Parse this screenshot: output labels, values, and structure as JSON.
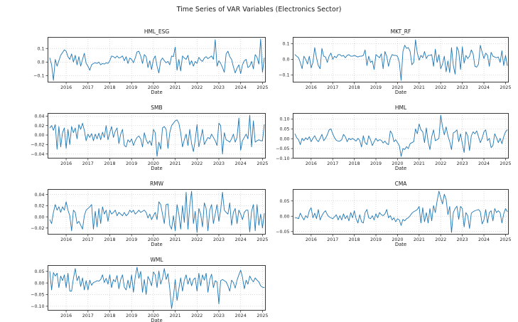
{
  "figure": {
    "background": "#ffffff",
    "text_color": "#262626"
  },
  "chart_data": {
    "type": "line",
    "title": "Time Series of VAR Variables (Electronics Sector)",
    "xlabel": "Date",
    "frequency": "monthly",
    "x_start": 2015.25,
    "x_step": 0.0833333,
    "xlim": [
      2015.15,
      2025.15
    ],
    "xticks": [
      2016,
      2017,
      2018,
      2019,
      2020,
      2021,
      2022,
      2023,
      2024,
      2025
    ],
    "grid": "dotted",
    "line_color": "#1f77b4",
    "subplots": [
      {
        "title": "HML_ESG",
        "ylim": [
          -0.15,
          0.185
        ],
        "ytick_values": [
          0.1,
          0.0,
          -0.1
        ],
        "ytick_labels": [
          "0.1",
          "0.0",
          "−0.1"
        ],
        "values": [
          0.03,
          -0.02,
          -0.135,
          0.02,
          -0.03,
          0.01,
          0.05,
          0.07,
          0.09,
          0.08,
          0.04,
          0.02,
          0.06,
          0,
          0.05,
          -0.02,
          0.04,
          -0.03,
          0.02,
          0.065,
          -0.01,
          -0.03,
          -0.06,
          -0.02,
          -0.01,
          -0.005,
          -0.01,
          0,
          -0.02,
          -0.01,
          -0.015,
          -0.005,
          -0.01,
          0.01,
          0.045,
          0.04,
          0.03,
          0.045,
          0.03,
          0.035,
          0.045,
          0.01,
          0.04,
          -0.01,
          0.03,
          0.02,
          -0.005,
          0.03,
          0.075,
          0.08,
          0.045,
          -0.01,
          0.055,
          0.04,
          -0.04,
          0.01,
          -0.055,
          0.02,
          0.045,
          -0.03,
          -0.08,
          0.01,
          0.03,
          0.01,
          -0.005,
          0.005,
          -0.02,
          0.045,
          0.04,
          0.11,
          -0.06,
          0.02,
          -0.065,
          0.045,
          0.03,
          0.02,
          0.05,
          -0.02,
          0.01,
          -0.03,
          0.005,
          -0.01,
          0.035,
          0.015,
          0.005,
          0.03,
          0.04,
          0.025,
          0.035,
          0.045,
          0.02,
          0.165,
          -0.03,
          0.01,
          -0.01,
          -0.04,
          -0.075,
          0.06,
          0.08,
          0.04,
          0.02,
          -0.035,
          -0.08,
          -0.045,
          -0.02,
          -0.085,
          -0.02,
          0.01,
          0.02,
          -0.04,
          -0.03,
          0.005,
          -0.05,
          0.055,
          0.035,
          -0.015,
          0.17,
          -0.075,
          0.03
        ]
      },
      {
        "title": "MKT_RF",
        "ylim": [
          -0.148,
          0.143
        ],
        "ytick_values": [
          0.1,
          0.0,
          -0.1
        ],
        "ytick_labels": [
          "0.1",
          "0.0",
          "−0.1"
        ],
        "values": [
          0.03,
          0.02,
          0.01,
          -0.02,
          -0.06,
          0.02,
          0,
          -0.03,
          0.02,
          -0.055,
          -0.02,
          0.075,
          0.01,
          -0.04,
          -0.06,
          0.07,
          0.02,
          0.015,
          -0.02,
          0.02,
          0.04,
          0,
          0.02,
          0.01,
          0.03,
          0.03,
          0.02,
          0.025,
          0.01,
          0.025,
          0.03,
          0.02,
          0.02,
          0.025,
          0.02,
          0.015,
          0.02,
          0.02,
          0.025,
          0.06,
          -0.04,
          0.02,
          -0.02,
          -0.01,
          -0.065,
          0.03,
          0.02,
          0.01,
          0.035,
          -0.06,
          0.05,
          0.02,
          -0.045,
          0.005,
          0.03,
          0.025,
          0.025,
          0.02,
          -0.02,
          -0.135,
          0.05,
          0.09,
          0.07,
          0.075,
          0.05,
          -0.035,
          -0.02,
          0.125,
          0.04,
          -0.005,
          0.025,
          0.01,
          0.05,
          0.005,
          0.025,
          0.025,
          0.03,
          -0.045,
          0.065,
          -0.02,
          0.03,
          -0.06,
          -0.03,
          0.02,
          -0.08,
          -0.01,
          -0.085,
          0.075,
          -0.04,
          -0.095,
          0.08,
          0.05,
          -0.065,
          0.08,
          -0.025,
          0.025,
          0.005,
          0.02,
          0.06,
          0.035,
          -0.045,
          -0.05,
          -0.03,
          0.09,
          0.045,
          0.005,
          0.04,
          0.025,
          -0.045,
          0.045,
          0.02,
          0.015,
          0.01,
          0.015,
          -0.02,
          0.055,
          -0.04,
          0.025,
          -0.04
        ]
      },
      {
        "title": "SMB",
        "ylim": [
          -0.0495,
          0.0465
        ],
        "ytick_values": [
          0.04,
          0.02,
          0.0,
          -0.02,
          -0.04
        ],
        "ytick_labels": [
          "0.04",
          "0.02",
          "0.00",
          "−0.02",
          "−0.04"
        ],
        "values": [
          0.015,
          0.02,
          0.01,
          0.022,
          -0.03,
          0.018,
          -0.025,
          0.005,
          0.015,
          -0.028,
          0.012,
          -0.02,
          0.018,
          0.005,
          0.015,
          -0.008,
          0.022,
          0.012,
          0.025,
          0.01,
          -0.012,
          0.002,
          -0.005,
          0.003,
          -0.012,
          0.002,
          -0.008,
          0.004,
          -0.01,
          0.006,
          -0.005,
          0.02,
          -0.01,
          0.005,
          0.018,
          -0.005,
          0.008,
          0.015,
          -0.018,
          0.002,
          0.012,
          -0.022,
          -0.025,
          -0.01,
          -0.015,
          -0.008,
          -0.022,
          -0.012,
          -0.005,
          -0.002,
          -0.008,
          -0.025,
          0.005,
          -0.01,
          -0.018,
          -0.012,
          -0.022,
          0.012,
          0.005,
          -0.045,
          -0.015,
          -0.03,
          0.015,
          0.018,
          0.012,
          -0.028,
          0.005,
          0.02,
          0.025,
          0.03,
          0.032,
          0.025,
          0.005,
          -0.025,
          -0.01,
          0.002,
          -0.022,
          0.012,
          -0.018,
          -0.035,
          -0.01,
          0.022,
          -0.025,
          -0.008,
          0.012,
          -0.02,
          -0.012,
          -0.005,
          -0.008,
          0.002,
          -0.005,
          -0.012,
          -0.022,
          0.025,
          0.02,
          -0.04,
          0.005,
          -0.01,
          -0.012,
          -0.015,
          -0.008,
          0.002,
          -0.015,
          -0.005,
          0.036,
          -0.032,
          -0.012,
          -0.005,
          0.002,
          -0.008,
          0.042,
          -0.025,
          0.03,
          -0.015,
          -0.012,
          -0.01,
          -0.012,
          -0.012,
          0.022
        ]
      },
      {
        "title": "HML",
        "ylim": [
          -0.1005,
          0.1305
        ],
        "ytick_values": [
          0.1,
          0.05,
          0.0,
          -0.05,
          -0.1
        ],
        "ytick_labels": [
          "0.10",
          "0.05",
          "0.00",
          "−0.05",
          "−0.10"
        ],
        "values": [
          0.025,
          0.005,
          -0.005,
          -0.03,
          0.002,
          -0.01,
          0.005,
          -0.005,
          0.01,
          -0.015,
          0.002,
          0.015,
          -0.005,
          -0.015,
          0.002,
          0.022,
          -0.01,
          0.002,
          0.02,
          0.045,
          0.05,
          0.025,
          0.005,
          -0.008,
          -0.012,
          -0.012,
          -0.005,
          0.022,
          0.01,
          -0.015,
          0.002,
          -0.005,
          0.002,
          -0.005,
          -0.012,
          0.002,
          -0.008,
          -0.042,
          0.015,
          -0.02,
          -0.03,
          0.015,
          -0.005,
          -0.035,
          -0.015,
          0.002,
          -0.012,
          -0.005,
          -0.008,
          -0.022,
          -0.012,
          -0.025,
          -0.03,
          0.04,
          0.025,
          -0.015,
          -0.005,
          -0.02,
          -0.035,
          -0.09,
          -0.05,
          -0.055,
          -0.04,
          -0.05,
          -0.025,
          -0.02,
          -0.015,
          0.05,
          0.025,
          0.075,
          0.045,
          0.035,
          -0.02,
          0.055,
          -0.015,
          -0.055,
          0.01,
          0.045,
          -0.01,
          -0.005,
          0.002,
          0.12,
          0.06,
          0.02,
          0.06,
          0.015,
          -0.015,
          -0.055,
          0.03,
          0.035,
          0.045,
          -0.015,
          0.025,
          -0.025,
          -0.07,
          0.035,
          0.015,
          -0.06,
          0.015,
          0.035,
          0.025,
          0.04,
          0.01,
          -0.02,
          0.002,
          0.035,
          0.045,
          -0.01,
          0.002,
          -0.045,
          -0.035,
          0.025,
          0.005,
          -0.02,
          0.002,
          -0.025,
          0.01,
          0.035,
          0.045
        ]
      },
      {
        "title": "RMW",
        "ylim": [
          -0.0317,
          0.0497
        ],
        "ytick_values": [
          0.04,
          0.02,
          0.0,
          -0.02
        ],
        "ytick_labels": [
          "0.04",
          "0.02",
          "0.00",
          "−0.02"
        ],
        "values": [
          -0.005,
          -0.012,
          0.008,
          0.022,
          0.012,
          0.018,
          0.008,
          0.018,
          0.012,
          0.027,
          0.012,
          0.002,
          -0.025,
          0.012,
          0.008,
          -0.012,
          -0.008,
          -0.015,
          -0.022,
          0.002,
          0.012,
          0.015,
          0.018,
          0.022,
          -0.022,
          0.01,
          -0.018,
          0.015,
          -0.012,
          0.018,
          0.005,
          0.012,
          -0.008,
          0.012,
          0.005,
          0.008,
          0.012,
          0.002,
          0.008,
          0.005,
          0.002,
          0.008,
          0.002,
          0.005,
          0.012,
          0.008,
          0.012,
          0.005,
          0.008,
          0.012,
          0.008,
          0.01,
          0.012,
          0.008,
          -0.002,
          0.005,
          -0.005,
          0.002,
          0.008,
          -0.005,
          0.027,
          0.022,
          0.005,
          -0.012,
          0.022,
          0.023,
          -0.015,
          -0.022,
          0.002,
          -0.025,
          0.022,
          0.005,
          -0.022,
          0.02,
          -0.01,
          0.044,
          -0.022,
          0.02,
          0.046,
          -0.012,
          0.01,
          -0.028,
          0.015,
          0.005,
          -0.018,
          0.025,
          0.015,
          -0.025,
          0.012,
          0.022,
          -0.012,
          0.005,
          0.022,
          -0.008,
          0.012,
          0.044,
          0.012,
          0.008,
          0.005,
          0.025,
          -0.015,
          0.008,
          0.015,
          -0.012,
          0.012,
          0.005,
          -0.005,
          0.008,
          0.012,
          0.012,
          -0.027,
          0.01,
          0.022,
          -0.025,
          0.022,
          -0.015,
          0.005,
          -0.02,
          0.006
        ]
      },
      {
        "title": "CMA",
        "ylim": [
          -0.0598,
          0.0888
        ],
        "ytick_values": [
          0.05,
          0.0,
          -0.05
        ],
        "ytick_labels": [
          "0.05",
          "0.00",
          "−0.05"
        ],
        "values": [
          -0.005,
          -0.005,
          -0.008,
          0.01,
          -0.002,
          -0.012,
          0.002,
          -0.005,
          0.018,
          0.028,
          -0.005,
          0.01,
          -0.008,
          0.022,
          -0.012,
          0.002,
          0.012,
          0.018,
          0.005,
          -0.002,
          -0.005,
          -0.008,
          -0.002,
          0.005,
          -0.012,
          0.002,
          -0.012,
          0.008,
          -0.008,
          0.002,
          -0.015,
          0.012,
          -0.005,
          0.018,
          -0.008,
          -0.022,
          0.005,
          -0.018,
          -0.022,
          0.012,
          0.022,
          -0.005,
          -0.008,
          0.002,
          -0.012,
          0.008,
          -0.005,
          0.012,
          0.005,
          0.002,
          0.008,
          0.022,
          -0.005,
          0.002,
          -0.012,
          -0.005,
          -0.018,
          -0.008,
          -0.012,
          -0.03,
          -0.01,
          -0.015,
          -0.008,
          -0.005,
          0.002,
          0.01,
          0.015,
          0.018,
          0.022,
          0.032,
          -0.022,
          0.028,
          -0.018,
          0.012,
          -0.022,
          0.025,
          -0.015,
          0.035,
          0.012,
          0.05,
          0.082,
          0.06,
          0.04,
          0.072,
          0.055,
          0.005,
          0.032,
          -0.053,
          0.012,
          0.025,
          0.033,
          -0.01,
          0.032,
          0.025,
          -0.035,
          0.012,
          0.002,
          -0.04,
          0.01,
          0.015,
          0.018,
          0.02,
          0.022,
          0.015,
          -0.025,
          -0.012,
          0.022,
          -0.022,
          0.012,
          0.018,
          -0.015,
          0.025,
          0.012,
          0.018,
          0.012,
          -0.022,
          0.008,
          0.025,
          0.015
        ]
      },
      {
        "title": "WML",
        "ylim": [
          -0.1189,
          0.0769
        ],
        "ytick_values": [
          0.05,
          0.0,
          -0.05,
          -0.1
        ],
        "ytick_labels": [
          "0.05",
          "0.00",
          "−0.05",
          "−0.10"
        ],
        "values": [
          0.05,
          -0.03,
          0.045,
          0.03,
          0.042,
          -0.02,
          0.03,
          0.01,
          0.035,
          -0.02,
          0.042,
          -0.035,
          -0.035,
          0.02,
          0.062,
          0.01,
          0.03,
          -0.015,
          0.022,
          -0.03,
          0.01,
          -0.03,
          0.012,
          -0.01,
          0.002,
          0.005,
          0.01,
          0.008,
          0.015,
          0.035,
          0.002,
          0.02,
          -0.005,
          0.035,
          -0.02,
          0.015,
          0.005,
          0.032,
          -0.025,
          0.015,
          0.035,
          -0.018,
          -0.03,
          0.012,
          -0.022,
          0.035,
          -0.04,
          0.025,
          0.068,
          0.02,
          0.05,
          -0.04,
          0.015,
          -0.05,
          0.028,
          0.012,
          -0.012,
          0.048,
          0.035,
          -0.02,
          0.052,
          -0.005,
          0.02,
          0.062,
          0.015,
          0.04,
          -0.025,
          -0.11,
          -0.06,
          0.015,
          -0.075,
          -0.025,
          0.022,
          -0.035,
          0.012,
          0.035,
          -0.005,
          0.022,
          -0.012,
          0.015,
          0.022,
          -0.035,
          0.042,
          -0.012,
          0.035,
          0.012,
          0.042,
          -0.04,
          0.015,
          0.038,
          -0.02,
          0.01,
          0.005,
          -0.09,
          0.01,
          0.015,
          0.01,
          0.005,
          -0.012,
          -0.035,
          0.012,
          0.002,
          -0.022,
          0.012,
          0.035,
          0.055,
          0.025,
          -0.025,
          0.012,
          -0.005,
          0.03,
          0.015,
          0.005,
          0.022,
          0.012,
          0.005,
          -0.012,
          -0.018,
          -0.02
        ]
      }
    ]
  }
}
